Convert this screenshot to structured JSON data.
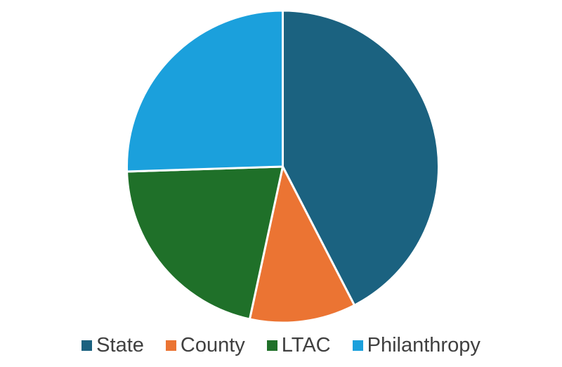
{
  "chart_data": {
    "type": "pie",
    "categories": [
      "State",
      "County",
      "LTAC",
      "Philanthropy"
    ],
    "values_percent": [
      42.4,
      11.0,
      21.1,
      25.5
    ],
    "colors": [
      "#1B6280",
      "#EB7433",
      "#1F7029",
      "#1BA0DC"
    ],
    "title": "",
    "data_labels": "none",
    "start_angle_deg": 0,
    "direction": "clockwise",
    "legend_position": "bottom",
    "slice_border_color": "#FFFFFF",
    "slice_border_width_px": 3
  },
  "legend": {
    "items": [
      {
        "label": "State"
      },
      {
        "label": "County"
      },
      {
        "label": "LTAC"
      },
      {
        "label": "Philanthropy"
      }
    ]
  },
  "colors": {
    "background": "#FFFFFF",
    "legend_text": "#404040"
  }
}
